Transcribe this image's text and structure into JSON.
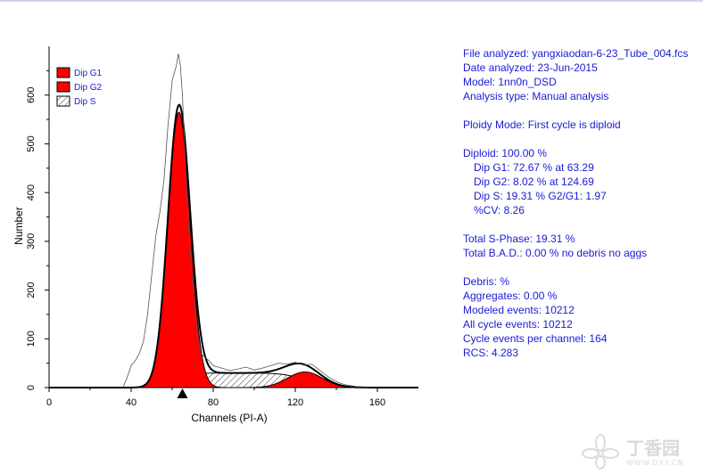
{
  "chart_data": {
    "type": "area",
    "xlabel": "Channels (PI-A)",
    "ylabel": "Number",
    "xlim": [
      0,
      180
    ],
    "ylim": [
      0,
      700
    ],
    "xticks": [
      0,
      40,
      80,
      120,
      160
    ],
    "yticks": [
      0,
      100,
      200,
      300,
      400,
      500,
      600
    ],
    "legend_position": "top-left",
    "legend": [
      {
        "label": "Dip G1",
        "fill": "solid",
        "color": "#ff0000"
      },
      {
        "label": "Dip G2",
        "fill": "solid",
        "color": "#ff0000"
      },
      {
        "label": "Dip S",
        "fill": "hatched",
        "color": "#000000"
      }
    ],
    "marker_channel": 65,
    "series": [
      {
        "name": "Dip G1",
        "shape": "gaussian",
        "peak_channel": 63.29,
        "height": 565,
        "sigma": 5.4
      },
      {
        "name": "Dip G2",
        "shape": "gaussian",
        "peak_channel": 124.69,
        "height": 32,
        "sigma": 8.5
      },
      {
        "name": "Dip S",
        "shape": "plateau",
        "from_channel": 63.29,
        "to_channel": 124.69,
        "height": 30
      },
      {
        "name": "",
        "shape": "raw-histogram",
        "x": [
          0,
          36,
          38,
          40,
          42,
          44,
          46,
          48,
          50,
          52,
          54,
          56,
          58,
          60,
          62,
          63,
          64,
          65,
          66,
          68,
          70,
          72,
          74,
          76,
          78,
          80,
          84,
          88,
          92,
          96,
          100,
          104,
          108,
          112,
          116,
          120,
          124,
          128,
          132,
          136,
          140,
          144,
          150,
          160,
          180
        ],
        "y": [
          0,
          0,
          20,
          45,
          55,
          70,
          95,
          150,
          230,
          310,
          360,
          425,
          540,
          630,
          660,
          685,
          660,
          600,
          500,
          330,
          210,
          120,
          70,
          62,
          55,
          45,
          40,
          35,
          38,
          42,
          36,
          40,
          45,
          50,
          48,
          52,
          46,
          48,
          35,
          22,
          12,
          6,
          2,
          0,
          0
        ]
      },
      {
        "name": "",
        "shape": "fit-total",
        "color": "#000000"
      }
    ]
  },
  "info": {
    "file_analyzed": "File analyzed: yangxiaodan-6-23_Tube_004.fcs",
    "date_analyzed": "Date analyzed: 23-Jun-2015",
    "model": "Model: 1nn0n_DSD",
    "analysis_type": "Analysis type: Manual analysis",
    "ploidy_mode": "Ploidy Mode: First cycle is diploid",
    "diploid": "Diploid: 100.00 %",
    "dip_g1": "Dip G1: 72.67 % at 63.29",
    "dip_g2": "Dip G2: 8.02 % at 124.69",
    "dip_s": "Dip S: 19.31 %    G2/G1: 1.97",
    "cv": "%CV: 8.26",
    "total_s_phase": "Total S-Phase: 19.31 %",
    "total_bad": "Total B.A.D.: 0.00 %    no debris no aggs",
    "debris": "Debris:  %",
    "aggregates": "Aggregates: 0.00 %",
    "modeled_events": "Modeled events: 10212",
    "all_cycle_events": "All cycle events: 10212",
    "cycle_events_per_channel": "Cycle events per channel: 164",
    "rcs": "RCS: 4.283"
  },
  "watermark": {
    "text": "丁香园",
    "url": "WWW.DXY.CN"
  }
}
